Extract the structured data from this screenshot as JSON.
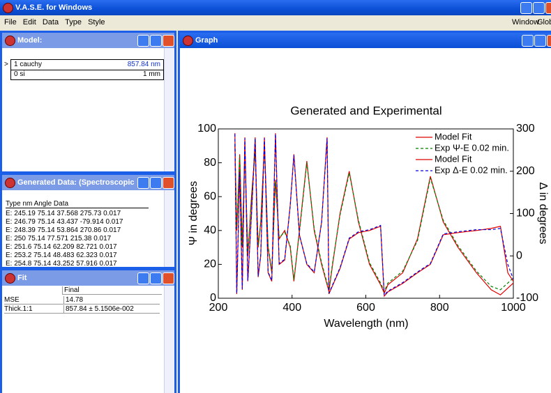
{
  "app": {
    "title": "V.A.S.E. for Windows",
    "menu": [
      "File",
      "Edit",
      "Data",
      "Type",
      "Style"
    ],
    "menu_right": [
      "Window",
      "Globa"
    ]
  },
  "model": {
    "title": "Model:",
    "marker": ">",
    "rows": [
      [
        "1 cauchy",
        "857.84 nm"
      ],
      [
        "0 si",
        "1 mm"
      ]
    ]
  },
  "generated": {
    "title": "Generated Data:  (Spectroscopic ...",
    "header": "Type  nm  Angle  Data",
    "rows": [
      "E: 245.19  75.14  37.568  275.73  0.017",
      "E: 246.79  75.14  43.437  -79.914  0.017",
      "E: 248.39  75.14  53.864  270.86  0.017",
      "E: 250  75.14  77.571  215.38  0.017",
      "E: 251.6  75.14  62.209  82.721  0.017",
      "E: 253.2  75.14  48.483  62.323  0.017",
      "E: 254.8  75.14  43.252  57.916  0.017"
    ]
  },
  "fit": {
    "title": "Fit",
    "header": "Final",
    "rows": [
      [
        "MSE",
        "14.78"
      ],
      [
        "Thick.1:1",
        "857.84 ± 5.1506e-002"
      ]
    ]
  },
  "graph": {
    "title": "Graph"
  },
  "chart_data": {
    "type": "line",
    "title": "Generated and Experimental",
    "x_label": "Wavelength (nm)",
    "y_label": "Ψ in degrees",
    "y2_label": "Δ in degrees",
    "xlim": [
      200,
      1000
    ],
    "xticks": [
      200,
      400,
      600,
      800,
      1000
    ],
    "ylim": [
      0,
      100
    ],
    "yticks": [
      0,
      20,
      40,
      60,
      80,
      100
    ],
    "y2lim": [
      -100,
      300
    ],
    "y2ticks": [
      -100,
      0,
      100,
      200,
      300
    ],
    "grid": false,
    "legend": "top-right",
    "x": [
      245,
      250,
      258,
      265,
      272,
      280,
      290,
      300,
      308,
      315,
      325,
      335,
      345,
      355,
      365,
      380,
      395,
      405,
      420,
      440,
      460,
      480,
      495,
      500,
      510,
      530,
      555,
      580,
      610,
      640,
      650,
      660,
      700,
      740,
      775,
      810,
      850,
      900,
      940,
      965,
      985,
      1000
    ],
    "series": [
      {
        "name": "Model Fit",
        "color": "#e00000",
        "line_style": "solid",
        "axis": "y",
        "values": [
          90,
          40,
          85,
          30,
          88,
          25,
          60,
          88,
          30,
          45,
          90,
          30,
          15,
          70,
          35,
          40,
          30,
          10,
          40,
          81,
          40,
          20,
          8,
          4,
          20,
          50,
          75,
          45,
          20,
          8,
          3,
          8,
          15,
          35,
          72,
          45,
          30,
          15,
          5,
          2,
          6,
          9
        ]
      },
      {
        "name": "Exp Ψ-E 0.02 min.",
        "color": "#008000",
        "line_style": "dashed",
        "axis": "y",
        "values": [
          91,
          41,
          84,
          31,
          87,
          26,
          59,
          87,
          31,
          44,
          89,
          31,
          16,
          69,
          36,
          39,
          31,
          11,
          39,
          80,
          41,
          21,
          9,
          5,
          21,
          49,
          74,
          46,
          21,
          9,
          4,
          9,
          16,
          34,
          71,
          46,
          31,
          16,
          7,
          5,
          9,
          12
        ]
      },
      {
        "name": "Model Fit",
        "color": "#e00000",
        "line_style": "solid",
        "axis": "y2",
        "values": [
          290,
          -90,
          200,
          -80,
          280,
          -60,
          100,
          280,
          -50,
          0,
          280,
          -40,
          -60,
          290,
          -20,
          -10,
          120,
          240,
          50,
          -20,
          -40,
          80,
          280,
          -90,
          -70,
          -30,
          40,
          55,
          60,
          70,
          -95,
          -85,
          -65,
          -40,
          -20,
          50,
          55,
          60,
          65,
          70,
          -40,
          -60
        ]
      },
      {
        "name": "Exp Δ-E 0.02 min.",
        "color": "#0000e0",
        "line_style": "dashed",
        "axis": "y2",
        "values": [
          288,
          -88,
          198,
          -78,
          278,
          -58,
          98,
          278,
          -48,
          2,
          278,
          -38,
          -58,
          288,
          -18,
          -8,
          118,
          238,
          48,
          -18,
          -38,
          78,
          278,
          -88,
          -68,
          -28,
          42,
          57,
          62,
          72,
          -93,
          -83,
          -63,
          -38,
          -18,
          52,
          57,
          62,
          62,
          65,
          -20,
          -55
        ]
      }
    ]
  }
}
